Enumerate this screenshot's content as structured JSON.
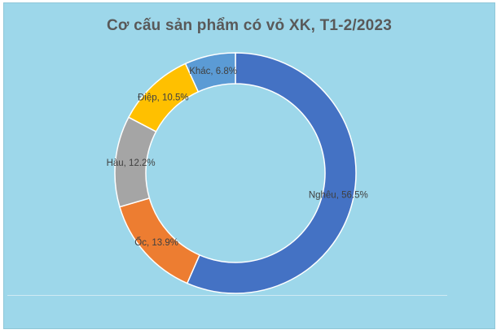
{
  "chart_data": {
    "type": "pie",
    "variant": "doughnut",
    "title": "Cơ cấu sản phẩm có vỏ XK, T1-2/2023",
    "slices": [
      {
        "name": "Nghêu",
        "value": 56.5,
        "label": "Nghêu, 56.5%",
        "color": "#4472c4"
      },
      {
        "name": "Ốc",
        "value": 13.9,
        "label": "Ốc, 13.9%",
        "color": "#ed7d31"
      },
      {
        "name": "Hàu",
        "value": 12.2,
        "label": "Hàu, 12.2%",
        "color": "#a5a5a5"
      },
      {
        "name": "Điệp",
        "value": 10.5,
        "label": "Điệp, 10.5%",
        "color": "#ffc000"
      },
      {
        "name": "Khác",
        "value": 6.8,
        "label": "Khác, 6.8%",
        "color": "#5b9bd5"
      }
    ],
    "legend": "none",
    "data_labels": "inside"
  },
  "colors": {
    "background": "#9dd7ea",
    "slice_border": "#ffffff"
  }
}
